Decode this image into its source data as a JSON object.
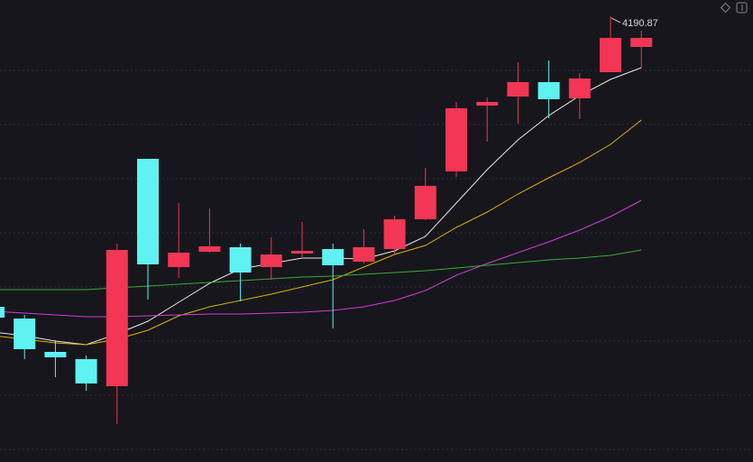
{
  "chart_data": {
    "type": "candlestick",
    "open": [
      3707.87,
      3688.37,
      3632.87,
      3620.87,
      3575.87,
      3953.87,
      3773.87,
      3799.37,
      3806.87,
      3773.87,
      3796.37,
      3803.87,
      3782.87,
      3803.87,
      3853.37,
      3932.87,
      4042.37,
      4057.37,
      4081.37,
      4054.37,
      4097.87,
      4139.87
    ],
    "high": [
      3710.87,
      3694.37,
      3652.37,
      3626.87,
      3812.87,
      3953.87,
      3880.37,
      3871.37,
      3812.87,
      3823.37,
      3848.87,
      3812.87,
      3836.87,
      3859.37,
      3938.87,
      4048.37,
      4055.87,
      4114.37,
      4117.37,
      4096.37,
      4190.87,
      4166.87
    ],
    "low": [
      3689.87,
      3620.87,
      3590.87,
      3568.37,
      3512.87,
      3719.87,
      3755.87,
      3797.87,
      3716.87,
      3752.87,
      3788.87,
      3671.87,
      3779.87,
      3796.37,
      3851.87,
      3923.87,
      3982.37,
      4012.37,
      4021.37,
      4019.87,
      4097.87,
      4105.37
    ],
    "close": [
      3689.87,
      3637.37,
      3623.87,
      3580.37,
      3802.37,
      3778.37,
      3797.87,
      3808.37,
      3764.87,
      3794.87,
      3800.87,
      3776.87,
      3806.87,
      3853.37,
      3908.87,
      4037.87,
      4048.37,
      4081.37,
      4052.87,
      4087.37,
      4154.87,
      4154.87
    ],
    "up_color": "#f23654",
    "down_color": "#5ff2f2",
    "moving_averages": [
      {
        "color": "#e8e8e8",
        "values": [
          3665.87,
          3659.87,
          3650.87,
          3644.87,
          3662.87,
          3683.87,
          3715.37,
          3746.87,
          3770.87,
          3779.87,
          3788.87,
          3788.87,
          3787.37,
          3800.87,
          3824.87,
          3880.37,
          3935.87,
          3985.37,
          4025.87,
          4058.87,
          4085.87,
          4105.37
        ]
      },
      {
        "color": "#d4b400",
        "values": [
          3659.87,
          3653.87,
          3647.87,
          3644.87,
          3653.87,
          3668.87,
          3692.87,
          3707.87,
          3718.37,
          3728.87,
          3740.87,
          3752.87,
          3773.87,
          3794.87,
          3809.87,
          3839.87,
          3865.37,
          3895.37,
          3922.37,
          3947.87,
          3977.87,
          4018.37
        ]
      },
      {
        "color": "#d23cd8",
        "values": [
          3700.37,
          3697.37,
          3694.37,
          3691.37,
          3691.37,
          3692.87,
          3694.37,
          3695.87,
          3695.87,
          3697.37,
          3698.87,
          3701.87,
          3707.87,
          3718.37,
          3734.87,
          3760.37,
          3779.87,
          3797.87,
          3815.87,
          3835.37,
          3857.87,
          3884.87
        ]
      },
      {
        "color": "#3caa3c",
        "values": [
          3736.37,
          3736.37,
          3736.37,
          3736.37,
          3739.37,
          3742.37,
          3745.37,
          3748.37,
          3751.37,
          3754.37,
          3757.37,
          3758.87,
          3761.87,
          3764.87,
          3767.87,
          3772.37,
          3776.87,
          3781.37,
          3785.87,
          3788.87,
          3793.37,
          3802.37
        ]
      }
    ],
    "ylim": [
      3449.87,
      4217.87
    ]
  }
}
